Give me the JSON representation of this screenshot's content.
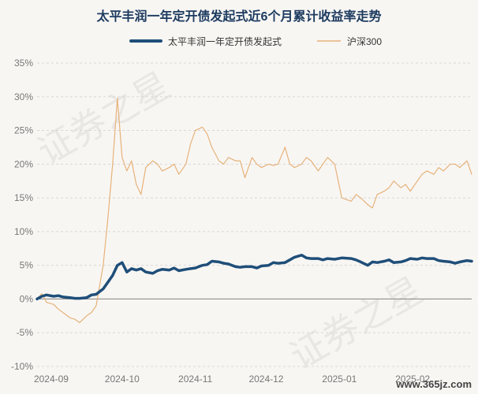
{
  "site_badge": "www.365jz.com",
  "watermark": "证券之星",
  "chart_data": {
    "type": "line",
    "title": "太平丰润一年定开债发起式近6个月累计收益率走势",
    "xlabel": "",
    "ylabel": "",
    "x_ticks": [
      "2024-09",
      "2024-10",
      "2024-11",
      "2024-12",
      "2025-01",
      "2025-02"
    ],
    "y_ticks": [
      "35%",
      "30%",
      "25%",
      "20%",
      "15%",
      "10%",
      "5%",
      "0%",
      "-5%",
      "-10%"
    ],
    "ylim": [
      -10,
      35
    ],
    "xlim": [
      "2024-08-26",
      "2025-02-26"
    ],
    "grid": true,
    "legend_position": "top",
    "series": [
      {
        "name": "太平丰润一年定开债发起式",
        "color": "#1f4e79",
        "stroke": "thick",
        "x": [
          "2024-08-26",
          "2024-08-28",
          "2024-08-30",
          "2024-09-02",
          "2024-09-04",
          "2024-09-06",
          "2024-09-09",
          "2024-09-11",
          "2024-09-13",
          "2024-09-16",
          "2024-09-18",
          "2024-09-20",
          "2024-09-23",
          "2024-09-25",
          "2024-09-27",
          "2024-09-29",
          "2024-10-01",
          "2024-10-03",
          "2024-10-05",
          "2024-10-07",
          "2024-10-09",
          "2024-10-11",
          "2024-10-14",
          "2024-10-16",
          "2024-10-18",
          "2024-10-21",
          "2024-10-23",
          "2024-10-25",
          "2024-10-28",
          "2024-10-30",
          "2024-11-01",
          "2024-11-04",
          "2024-11-06",
          "2024-11-08",
          "2024-11-11",
          "2024-11-13",
          "2024-11-15",
          "2024-11-18",
          "2024-11-20",
          "2024-11-22",
          "2024-11-25",
          "2024-11-27",
          "2024-11-29",
          "2024-12-02",
          "2024-12-04",
          "2024-12-06",
          "2024-12-09",
          "2024-12-11",
          "2024-12-13",
          "2024-12-16",
          "2024-12-18",
          "2024-12-20",
          "2024-12-23",
          "2024-12-25",
          "2024-12-27",
          "2024-12-30",
          "2025-01-02",
          "2025-01-06",
          "2025-01-08",
          "2025-01-10",
          "2025-01-13",
          "2025-01-15",
          "2025-01-17",
          "2025-01-20",
          "2025-01-22",
          "2025-01-24",
          "2025-01-27",
          "2025-01-29",
          "2025-01-31",
          "2025-02-03",
          "2025-02-05",
          "2025-02-07",
          "2025-02-10",
          "2025-02-12",
          "2025-02-14",
          "2025-02-17",
          "2025-02-19",
          "2025-02-21",
          "2025-02-24",
          "2025-02-26"
        ],
        "values": [
          0.0,
          0.4,
          0.6,
          0.4,
          0.5,
          0.3,
          0.2,
          0.1,
          0.1,
          0.2,
          0.6,
          0.7,
          1.5,
          2.5,
          3.5,
          5.0,
          5.4,
          4.0,
          4.5,
          4.3,
          4.5,
          4.0,
          3.8,
          4.2,
          4.4,
          4.3,
          4.6,
          4.2,
          4.4,
          4.5,
          4.6,
          5.0,
          5.1,
          5.6,
          5.5,
          5.3,
          5.2,
          4.8,
          4.7,
          4.8,
          4.8,
          4.6,
          4.9,
          5.0,
          5.4,
          5.3,
          5.4,
          5.8,
          6.2,
          6.5,
          6.1,
          6.0,
          6.0,
          5.8,
          6.0,
          5.9,
          6.1,
          6.0,
          5.8,
          5.5,
          5.0,
          5.5,
          5.4,
          5.6,
          5.8,
          5.4,
          5.5,
          5.7,
          6.0,
          5.9,
          6.1,
          6.0,
          6.0,
          5.7,
          5.6,
          5.5,
          5.3,
          5.5,
          5.7,
          5.6
        ]
      },
      {
        "name": "沪深300",
        "color": "#e6b27a",
        "stroke": "thin",
        "x": [
          "2024-08-26",
          "2024-08-28",
          "2024-08-30",
          "2024-09-02",
          "2024-09-04",
          "2024-09-06",
          "2024-09-09",
          "2024-09-11",
          "2024-09-13",
          "2024-09-16",
          "2024-09-18",
          "2024-09-20",
          "2024-09-23",
          "2024-09-25",
          "2024-09-27",
          "2024-09-29",
          "2024-10-01",
          "2024-10-03",
          "2024-10-05",
          "2024-10-07",
          "2024-10-09",
          "2024-10-11",
          "2024-10-14",
          "2024-10-16",
          "2024-10-18",
          "2024-10-21",
          "2024-10-23",
          "2024-10-25",
          "2024-10-28",
          "2024-10-30",
          "2024-11-01",
          "2024-11-04",
          "2024-11-06",
          "2024-11-08",
          "2024-11-11",
          "2024-11-13",
          "2024-11-15",
          "2024-11-18",
          "2024-11-20",
          "2024-11-22",
          "2024-11-25",
          "2024-11-27",
          "2024-11-29",
          "2024-12-02",
          "2024-12-04",
          "2024-12-06",
          "2024-12-09",
          "2024-12-11",
          "2024-12-13",
          "2024-12-16",
          "2024-12-18",
          "2024-12-20",
          "2024-12-23",
          "2024-12-25",
          "2024-12-27",
          "2024-12-30",
          "2025-01-02",
          "2025-01-06",
          "2025-01-08",
          "2025-01-10",
          "2025-01-13",
          "2025-01-15",
          "2025-01-17",
          "2025-01-20",
          "2025-01-22",
          "2025-01-24",
          "2025-01-27",
          "2025-01-29",
          "2025-01-31",
          "2025-02-03",
          "2025-02-05",
          "2025-02-07",
          "2025-02-10",
          "2025-02-12",
          "2025-02-14",
          "2025-02-17",
          "2025-02-19",
          "2025-02-21",
          "2025-02-24",
          "2025-02-26"
        ],
        "values": [
          0.0,
          0.8,
          -0.5,
          -0.8,
          -1.5,
          -2.0,
          -2.8,
          -3.0,
          -3.5,
          -2.5,
          -2.0,
          -1.0,
          5.0,
          12.0,
          20.0,
          29.8,
          21.0,
          19.0,
          20.5,
          17.0,
          15.5,
          19.5,
          20.5,
          20.0,
          19.0,
          19.5,
          20.0,
          18.5,
          20.0,
          23.0,
          25.0,
          25.5,
          24.5,
          22.5,
          20.5,
          20.0,
          21.0,
          20.5,
          20.5,
          18.0,
          21.0,
          20.0,
          19.5,
          20.0,
          19.8,
          20.0,
          22.5,
          20.0,
          19.5,
          20.0,
          21.0,
          20.5,
          19.0,
          20.0,
          21.0,
          20.0,
          15.0,
          14.5,
          15.5,
          15.0,
          14.0,
          13.5,
          15.5,
          16.0,
          16.5,
          17.5,
          16.5,
          17.0,
          16.0,
          17.5,
          18.5,
          19.0,
          18.5,
          19.5,
          19.0,
          20.0,
          20.0,
          19.5,
          20.5,
          18.5
        ]
      }
    ]
  }
}
